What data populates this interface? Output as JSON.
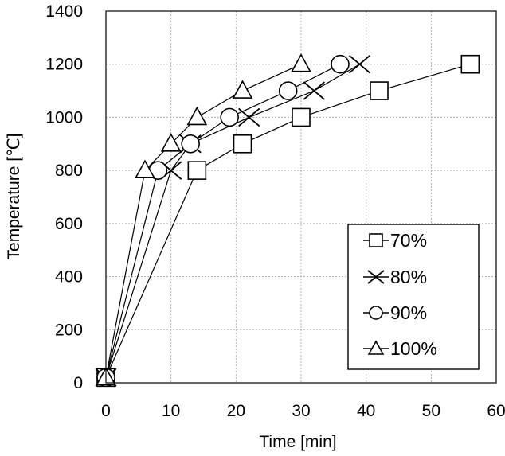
{
  "chart_data": {
    "type": "line",
    "title": "",
    "xlabel": "Time [min]",
    "ylabel": "Temperature [℃]",
    "xlim": [
      0,
      60
    ],
    "ylim": [
      0,
      1400
    ],
    "xticks": [
      0,
      10,
      20,
      30,
      40,
      50,
      60
    ],
    "yticks": [
      0,
      200,
      400,
      600,
      800,
      1000,
      1200,
      1400
    ],
    "grid": true,
    "legend_position": "bottom-right",
    "series": [
      {
        "name": "70%",
        "marker": "square",
        "x": [
          0,
          14,
          21,
          30,
          42,
          56
        ],
        "y": [
          20,
          800,
          900,
          1000,
          1100,
          1200
        ]
      },
      {
        "name": "80%",
        "marker": "x",
        "x": [
          0,
          10,
          13,
          22,
          32,
          39
        ],
        "y": [
          20,
          800,
          900,
          1000,
          1100,
          1200
        ]
      },
      {
        "name": "90%",
        "marker": "circle",
        "x": [
          0,
          8,
          13,
          19,
          28,
          36
        ],
        "y": [
          20,
          800,
          900,
          1000,
          1100,
          1200
        ]
      },
      {
        "name": "100%",
        "marker": "triangle",
        "x": [
          0,
          6,
          10,
          14,
          21,
          30
        ],
        "y": [
          20,
          800,
          900,
          1000,
          1100,
          1200
        ]
      }
    ]
  }
}
